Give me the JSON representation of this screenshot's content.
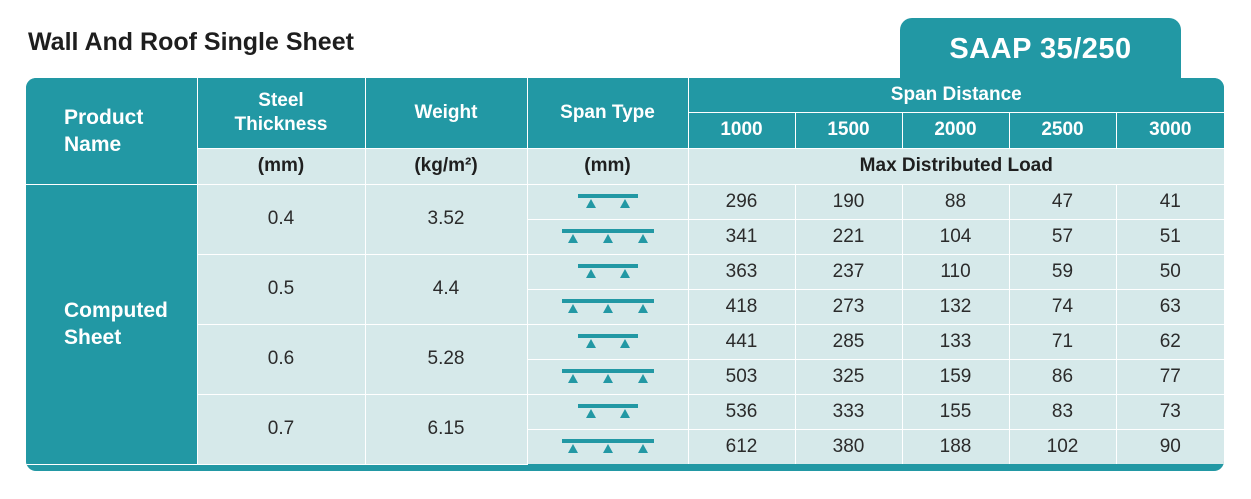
{
  "title": "Wall And Roof Single Sheet",
  "product": "SAAP 35/250",
  "headers": {
    "product_name": "Product Name",
    "steel_thickness": "Steel Thickness",
    "weight": "Weight",
    "span_type": "Span Type",
    "span_distance": "Span Distance",
    "spans": [
      "1000",
      "1500",
      "2000",
      "2500",
      "3000"
    ],
    "units": {
      "thickness": "(mm)",
      "weight": "(kg/m²)",
      "span_type": "(mm)",
      "load": "Max Distributed Load"
    }
  },
  "product_name_value": "Computed Sheet",
  "groups": [
    {
      "thickness": "0.4",
      "weight": "3.52",
      "rows": [
        {
          "span_type_icon": "single-span-icon",
          "values": [
            "296",
            "190",
            "88",
            "47",
            "41"
          ]
        },
        {
          "span_type_icon": "double-span-icon",
          "values": [
            "341",
            "221",
            "104",
            "57",
            "51"
          ]
        }
      ]
    },
    {
      "thickness": "0.5",
      "weight": "4.4",
      "rows": [
        {
          "span_type_icon": "single-span-icon",
          "values": [
            "363",
            "237",
            "110",
            "59",
            "50"
          ]
        },
        {
          "span_type_icon": "double-span-icon",
          "values": [
            "418",
            "273",
            "132",
            "74",
            "63"
          ]
        }
      ]
    },
    {
      "thickness": "0.6",
      "weight": "5.28",
      "rows": [
        {
          "span_type_icon": "single-span-icon",
          "values": [
            "441",
            "285",
            "133",
            "71",
            "62"
          ]
        },
        {
          "span_type_icon": "double-span-icon",
          "values": [
            "503",
            "325",
            "159",
            "86",
            "77"
          ]
        }
      ]
    },
    {
      "thickness": "0.7",
      "weight": "6.15",
      "rows": [
        {
          "span_type_icon": "single-span-icon",
          "values": [
            "536",
            "333",
            "155",
            "83",
            "73"
          ]
        },
        {
          "span_type_icon": "double-span-icon",
          "values": [
            "612",
            "380",
            "188",
            "102",
            "90"
          ]
        }
      ]
    }
  ],
  "colors": {
    "accent": "#2298a4",
    "light_cell": "#d6e9ea",
    "icon": "#2298a4"
  }
}
